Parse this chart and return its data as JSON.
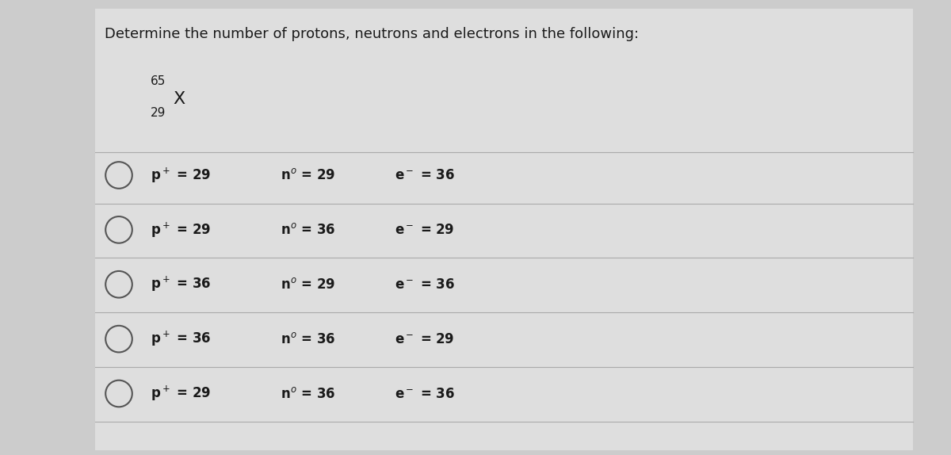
{
  "title": "Determine the number of protons, neutrons and electrons in the following:",
  "element_label": "X",
  "mass_number": "65",
  "atomic_number": "29",
  "bg_color": "#cccccc",
  "panel_color": "#e0e0e0",
  "text_color": "#1a1a1a",
  "line_color": "#aaaaaa",
  "options": [
    {
      "p": 29,
      "n": 29,
      "e": 36
    },
    {
      "p": 29,
      "n": 36,
      "e": 29
    },
    {
      "p": 36,
      "n": 29,
      "e": 36
    },
    {
      "p": 36,
      "n": 36,
      "e": 29
    },
    {
      "p": 29,
      "n": 36,
      "e": 36
    }
  ],
  "title_fontsize": 13,
  "option_fontsize": 12,
  "figsize": [
    12.0,
    5.74
  ]
}
